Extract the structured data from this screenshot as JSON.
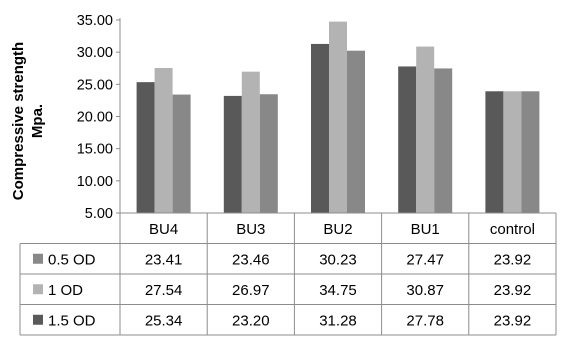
{
  "chart_data": {
    "type": "bar",
    "ylabel_line1": "Compressive strength",
    "ylabel_line2": "Mpa.",
    "ylim": [
      5,
      35
    ],
    "ytick_step": 5,
    "yticks": [
      "5.00",
      "10.00",
      "15.00",
      "20.00",
      "25.00",
      "30.00",
      "35.00"
    ],
    "grid": false,
    "legend": "data-table",
    "categories": [
      "BU4",
      "BU3",
      "BU2",
      "BU1",
      "control"
    ],
    "series": [
      {
        "name": "1.5 OD",
        "color": "#595959",
        "values": [
          25.34,
          23.2,
          31.28,
          27.78,
          23.92
        ],
        "labels": [
          "25.34",
          "23.20",
          "31.28",
          "27.78",
          "23.92"
        ]
      },
      {
        "name": "1 OD",
        "color": "#b3b3b3",
        "values": [
          27.54,
          26.97,
          34.75,
          30.87,
          23.92
        ],
        "labels": [
          "27.54",
          "26.97",
          "34.75",
          "30.87",
          "23.92"
        ]
      },
      {
        "name": "0.5 OD",
        "color": "#888888",
        "values": [
          23.41,
          23.46,
          30.23,
          27.47,
          23.92
        ],
        "labels": [
          "23.41",
          "23.46",
          "30.23",
          "27.47",
          "23.92"
        ]
      }
    ],
    "table_row_order": [
      "0.5 OD",
      "1 OD",
      "1.5 OD"
    ]
  }
}
